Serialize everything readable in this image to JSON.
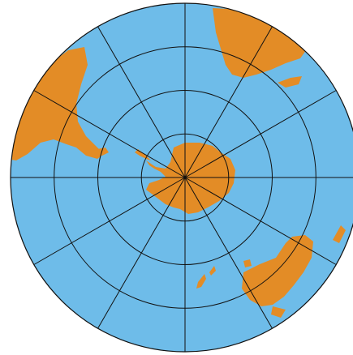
{
  "map": {
    "projection": "polar-azimuthal-south",
    "colors": {
      "ocean": "#6ebce9",
      "land": "#e38c26",
      "gridline": "#111111",
      "border": "#111111",
      "background": "#ffffff"
    },
    "graticule": {
      "parallel_rings": 3,
      "meridian_count": 12,
      "meridian_step_degrees": 30
    },
    "features": [
      "antarctica",
      "south-america",
      "africa",
      "australia",
      "new-zealand",
      "falkland-islands",
      "madagascar",
      "tasmania"
    ]
  }
}
